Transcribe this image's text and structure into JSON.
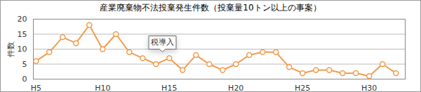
{
  "chart_data": {
    "type": "line",
    "title": "産業廃棄物不法投棄発生件数（投棄量10トン以上の事案）",
    "y_label": "件数",
    "x": [
      5,
      6,
      7,
      8,
      9,
      10,
      11,
      12,
      13,
      14,
      15,
      16,
      17,
      18,
      19,
      20,
      21,
      22,
      23,
      24,
      25,
      26,
      27,
      28,
      29,
      30,
      31,
      32
    ],
    "values": [
      6,
      9,
      14,
      12,
      18,
      10,
      15,
      9,
      7,
      5,
      7,
      3,
      8,
      5,
      3,
      5,
      8,
      9,
      9,
      4,
      2,
      3,
      3,
      2,
      2,
      1,
      5,
      2
    ],
    "color": "#f29b4c",
    "marker": "circle",
    "xlim": [
      4.8,
      32.7
    ],
    "xticks": [
      {
        "value": 5,
        "label": "H5"
      },
      {
        "value": 10,
        "label": "H10"
      },
      {
        "value": 15,
        "label": "H15"
      },
      {
        "value": 20,
        "label": "H20"
      },
      {
        "value": 25,
        "label": "H25"
      },
      {
        "value": 30,
        "label": "H30"
      }
    ],
    "ylim": [
      0,
      20
    ],
    "yticks": [
      0,
      5,
      10,
      15,
      20
    ],
    "grid": true,
    "annotations": [
      {
        "text": "税導入",
        "x": 14.5,
        "y": 9
      }
    ]
  }
}
